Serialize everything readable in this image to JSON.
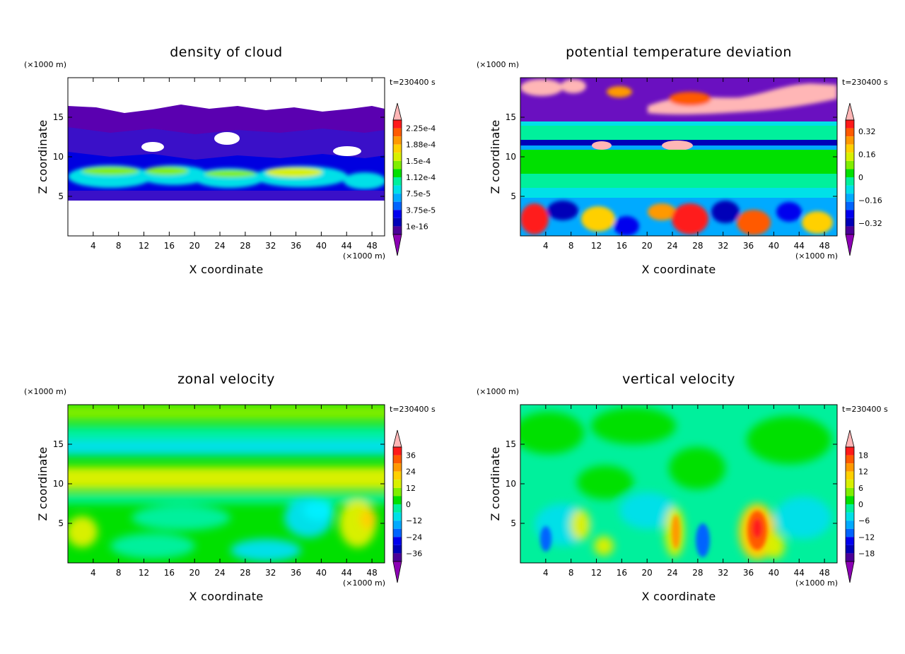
{
  "chart_data": [
    {
      "type": "heatmap",
      "title": "density of cloud",
      "xlabel": "X coordinate",
      "ylabel": "Z coordinate",
      "x_unit": "(×1000 m)",
      "y_unit": "(×1000 m)",
      "time_label": "t=230400 s",
      "xlim": [
        0,
        50
      ],
      "ylim": [
        0,
        20
      ],
      "x_ticks": [
        "4",
        "8",
        "12",
        "16",
        "20",
        "24",
        "28",
        "32",
        "36",
        "40",
        "44",
        "48"
      ],
      "y_ticks": [
        "5",
        "10",
        "15"
      ],
      "colorbar": {
        "labels": [
          "2.25e-4",
          "1.88e-4",
          "1.5e-4",
          "1.12e-4",
          "7.5e-5",
          "3.75e-5",
          "1e-16"
        ],
        "colors": [
          "#ffb6b6",
          "#ff1a1a",
          "#ff5a00",
          "#ff9900",
          "#ffd000",
          "#d8f000",
          "#80ee00",
          "#00e000",
          "#00f09c",
          "#00e0e8",
          "#00aaff",
          "#0064ff",
          "#0000ee",
          "#0000b8",
          "#4b0098",
          "#8c00b4"
        ]
      }
    },
    {
      "type": "heatmap",
      "title": "potential temperature deviation",
      "xlabel": "X coordinate",
      "ylabel": "Z coordinate",
      "x_unit": "(×1000 m)",
      "y_unit": "(×1000 m)",
      "time_label": "t=230400 s",
      "xlim": [
        0,
        50
      ],
      "ylim": [
        0,
        20
      ],
      "x_ticks": [
        "4",
        "8",
        "12",
        "16",
        "20",
        "24",
        "28",
        "32",
        "36",
        "40",
        "44",
        "48"
      ],
      "y_ticks": [
        "5",
        "10",
        "15"
      ],
      "colorbar": {
        "labels": [
          "0.32",
          "0.16",
          "0",
          "−0.16",
          "−0.32"
        ],
        "colors": [
          "#ffb6b6",
          "#ff1a1a",
          "#ff5a00",
          "#ff9900",
          "#ffd000",
          "#d8f000",
          "#80ee00",
          "#00e000",
          "#00f09c",
          "#00e0e8",
          "#00aaff",
          "#0064ff",
          "#0000ee",
          "#0000b8",
          "#4b0098",
          "#8c00b4"
        ]
      }
    },
    {
      "type": "heatmap",
      "title": "zonal velocity",
      "xlabel": "X coordinate",
      "ylabel": "Z coordinate",
      "x_unit": "(×1000 m)",
      "y_unit": "(×1000 m)",
      "time_label": "t=230400 s",
      "xlim": [
        0,
        50
      ],
      "ylim": [
        0,
        20
      ],
      "x_ticks": [
        "4",
        "8",
        "12",
        "16",
        "20",
        "24",
        "28",
        "32",
        "36",
        "40",
        "44",
        "48"
      ],
      "y_ticks": [
        "5",
        "10",
        "15"
      ],
      "colorbar": {
        "labels": [
          "36",
          "24",
          "12",
          "0",
          "−12",
          "−24",
          "−36"
        ],
        "colors": [
          "#ffb6b6",
          "#ff1a1a",
          "#ff5a00",
          "#ff9900",
          "#ffd000",
          "#d8f000",
          "#80ee00",
          "#00e000",
          "#00f09c",
          "#00e0e8",
          "#00aaff",
          "#0064ff",
          "#0000ee",
          "#0000b8",
          "#4b0098",
          "#8c00b4"
        ]
      }
    },
    {
      "type": "heatmap",
      "title": "vertical velocity",
      "xlabel": "X coordinate",
      "ylabel": "Z coordinate",
      "x_unit": "(×1000 m)",
      "y_unit": "(×1000 m)",
      "time_label": "t=230400 s",
      "xlim": [
        0,
        50
      ],
      "ylim": [
        0,
        20
      ],
      "x_ticks": [
        "4",
        "8",
        "12",
        "16",
        "20",
        "24",
        "28",
        "32",
        "36",
        "40",
        "44",
        "48"
      ],
      "y_ticks": [
        "5",
        "10",
        "15"
      ],
      "colorbar": {
        "labels": [
          "18",
          "12",
          "6",
          "0",
          "−6",
          "−12",
          "−18"
        ],
        "colors": [
          "#ffb6b6",
          "#ff1a1a",
          "#ff5a00",
          "#ff9900",
          "#ffd000",
          "#d8f000",
          "#80ee00",
          "#00e000",
          "#00f09c",
          "#00e0e8",
          "#00aaff",
          "#0064ff",
          "#0000ee",
          "#0000b8",
          "#4b0098",
          "#8c00b4"
        ]
      }
    }
  ]
}
